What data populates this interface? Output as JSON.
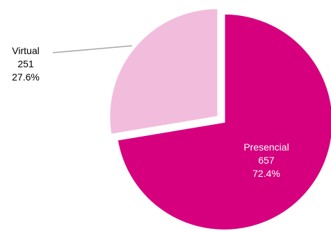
{
  "chart_data": {
    "type": "pie",
    "title": "",
    "slices": [
      {
        "label": "Presencial",
        "value": 657,
        "percent": "72.4%",
        "color": "#d6007e",
        "label_color": "#ffffff"
      },
      {
        "label": "Virtual",
        "value": 251,
        "percent": "27.6%",
        "color": "#f2bcdc",
        "label_color": "#000000"
      }
    ],
    "leader_line_color": "#a6a6a6",
    "exploded": true
  }
}
